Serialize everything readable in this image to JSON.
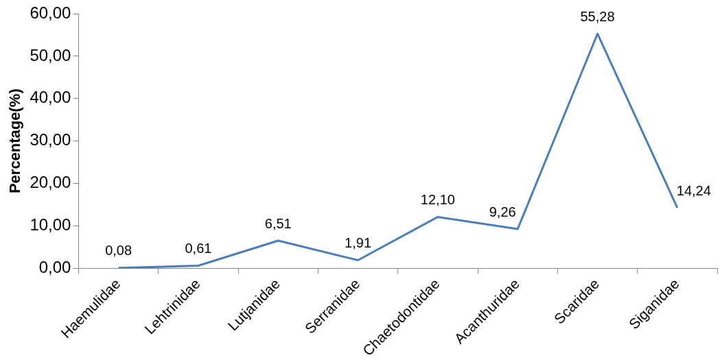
{
  "chart_data": {
    "type": "line",
    "ylabel": "Percentage(%)",
    "categories": [
      "Haemulidae",
      "Lehtrinidae",
      "Lutjanidae",
      "Serranidae",
      "Chaetodontidae",
      "Acanthuridae",
      "Scaridae",
      "Siganidae"
    ],
    "series": [
      {
        "color": "#4a7ebb",
        "values": [
          0.08,
          0.61,
          6.51,
          1.91,
          12.1,
          9.26,
          55.28,
          14.24
        ],
        "value_labels": [
          "0,08",
          "0,61",
          "6,51",
          "1,91",
          "12,10",
          "9,26",
          "55,28",
          "14,24"
        ]
      }
    ],
    "ylim": [
      0,
      60
    ],
    "yticks": [
      {
        "value": 0,
        "label": "0,00"
      },
      {
        "value": 10,
        "label": "10,00"
      },
      {
        "value": 20,
        "label": "20,00"
      },
      {
        "value": 30,
        "label": "30,00"
      },
      {
        "value": 40,
        "label": "40,00"
      },
      {
        "value": 50,
        "label": "50,00"
      },
      {
        "value": 60,
        "label": "60,00"
      }
    ],
    "grid": false,
    "legend": false,
    "marker": "none",
    "line_style": "solid"
  }
}
